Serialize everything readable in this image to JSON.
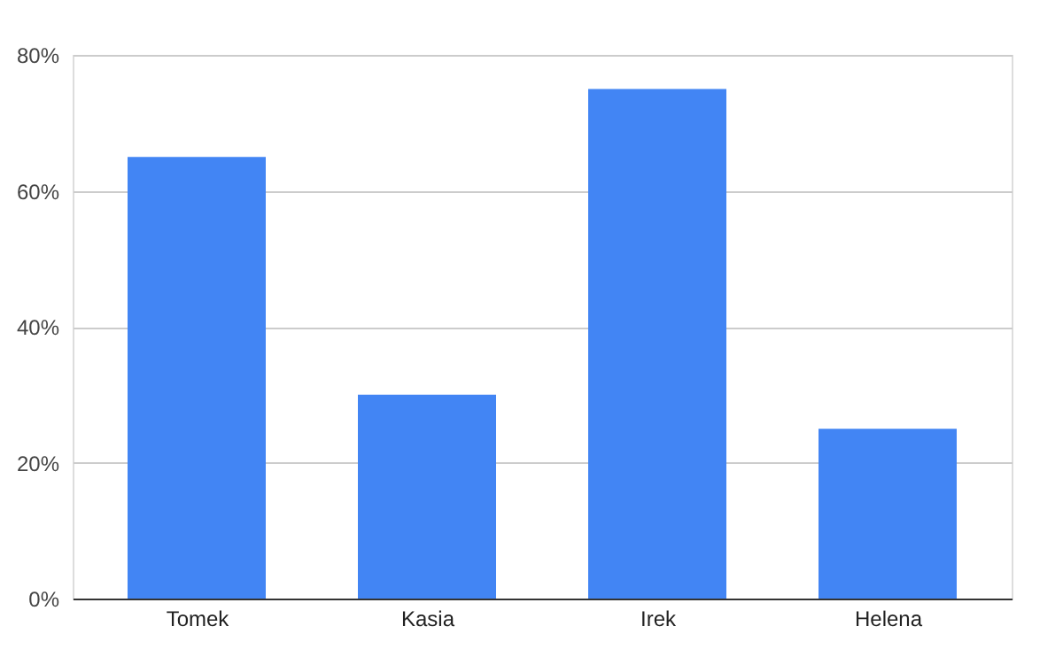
{
  "chart_data": {
    "type": "bar",
    "categories": [
      "Tomek",
      "Kasia",
      "Irek",
      "Helena"
    ],
    "values": [
      65,
      30,
      75,
      25
    ],
    "color": "#4285f4",
    "ylim": [
      0,
      80
    ],
    "yticks": [
      {
        "value": 0,
        "label": "0%"
      },
      {
        "value": 20,
        "label": "20%"
      },
      {
        "value": 40,
        "label": "40%"
      },
      {
        "value": 60,
        "label": "60%"
      },
      {
        "value": 80,
        "label": "80%"
      }
    ],
    "grid": "y"
  }
}
